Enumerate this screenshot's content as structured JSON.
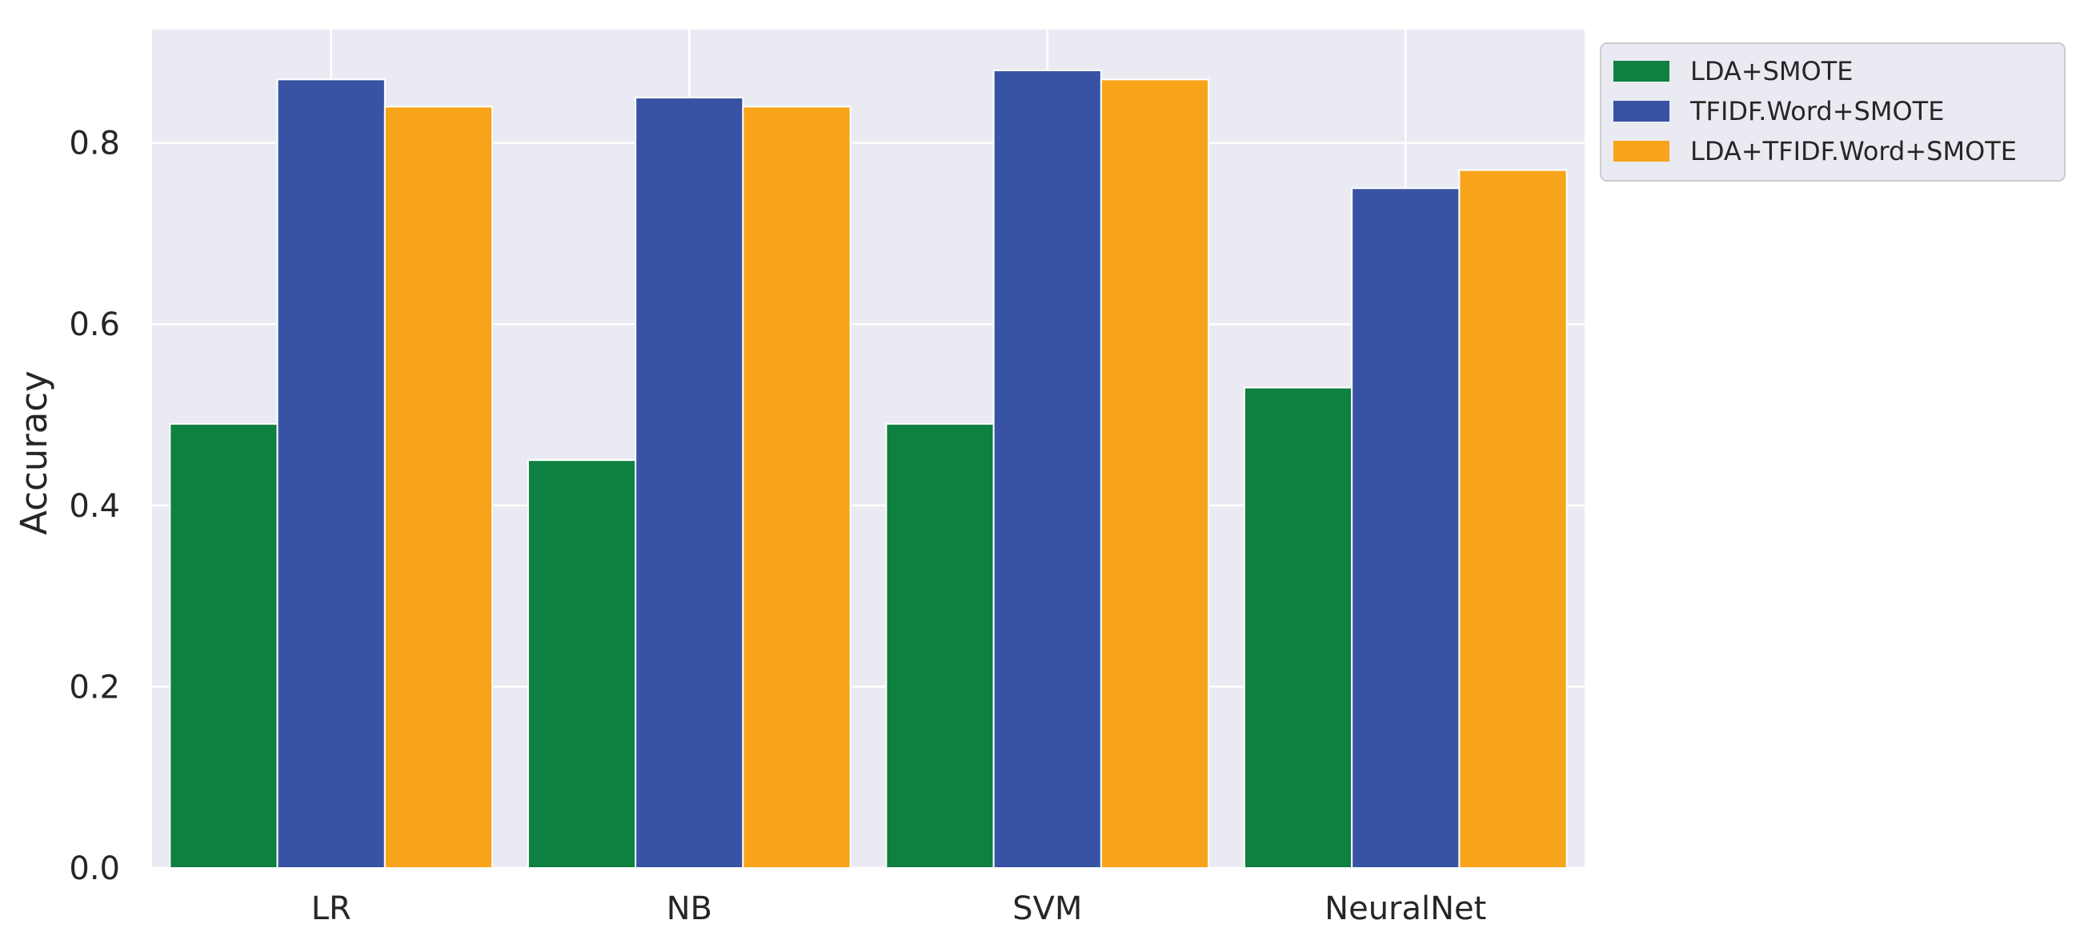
{
  "chart_data": {
    "type": "bar",
    "title": "",
    "xlabel": "",
    "ylabel": "Accuracy",
    "categories": [
      "LR",
      "NB",
      "SVM",
      "NeuralNet"
    ],
    "series": [
      {
        "name": "LDA+SMOTE",
        "color": "#0e8040",
        "values": [
          0.49,
          0.45,
          0.49,
          0.53
        ]
      },
      {
        "name": "TFIDF.Word+SMOTE",
        "color": "#3953a4",
        "values": [
          0.87,
          0.85,
          0.88,
          0.75
        ]
      },
      {
        "name": "LDA+TFIDF.Word+SMOTE",
        "color": "#f8a41b",
        "values": [
          0.84,
          0.84,
          0.87,
          0.77
        ]
      }
    ],
    "ylim": [
      0,
      0.925
    ],
    "yticks": [
      "0.0",
      "0.2",
      "0.4",
      "0.6",
      "0.8"
    ],
    "grid": true,
    "legend_position": "outside-top-right",
    "plot_background": "#eaeaf2",
    "grid_color": "#ffffff"
  }
}
